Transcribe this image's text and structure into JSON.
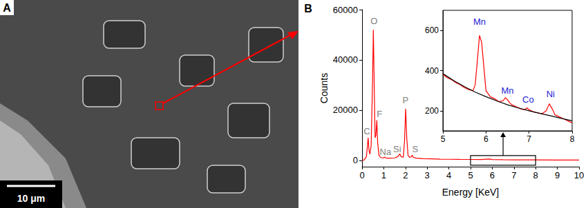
{
  "panel_labels": [
    "A",
    "B"
  ],
  "scale_bar": "10 μm",
  "chart_data": [
    {
      "type": "line",
      "x_label": "Energy [KeV]",
      "y_label": "Counts",
      "xlim": [
        0,
        10
      ],
      "xticks": [
        0,
        1,
        2,
        3,
        4,
        5,
        6,
        7,
        8,
        9,
        10
      ],
      "ylim": [
        -2500,
        60000
      ],
      "yticks": [
        0,
        20000,
        40000,
        60000
      ],
      "grid": false,
      "series": [
        {
          "color": "#ff0000",
          "line_style": "solid",
          "x": [
            0,
            0.1,
            0.2,
            0.24,
            0.28,
            0.32,
            0.36,
            0.42,
            0.48,
            0.52,
            0.56,
            0.6,
            0.64,
            0.68,
            0.72,
            0.78,
            0.85,
            0.95,
            1.0,
            1.04,
            1.08,
            1.15,
            1.3,
            1.5,
            1.65,
            1.74,
            1.8,
            1.9,
            1.96,
            2.01,
            2.06,
            2.12,
            2.2,
            2.27,
            2.31,
            2.36,
            2.5,
            2.8,
            3.2,
            3.6,
            4,
            4.5,
            5,
            5.5,
            5.85,
            6,
            6.5,
            7,
            7.5,
            8,
            9,
            10
          ],
          "values": [
            0,
            200,
            1500,
            5000,
            9000,
            4000,
            2500,
            6000,
            30000,
            52000,
            30000,
            9000,
            10000,
            16000,
            7000,
            2000,
            1200,
            1000,
            1000,
            1400,
            1000,
            900,
            900,
            1000,
            1500,
            2600,
            1500,
            1200,
            8000,
            20500,
            9000,
            2000,
            1200,
            1400,
            2100,
            1200,
            900,
            700,
            600,
            500,
            450,
            400,
            380,
            340,
            560,
            330,
            260,
            220,
            200,
            180,
            150,
            130
          ]
        }
      ],
      "annotations": [
        {
          "text": "C",
          "x": 0.22,
          "y": 11500,
          "color": "#808080"
        },
        {
          "text": "O",
          "x": 0.55,
          "y": 55500,
          "color": "#808080"
        },
        {
          "text": "F",
          "x": 0.8,
          "y": 18500,
          "color": "#808080"
        },
        {
          "text": "Na",
          "x": 1.08,
          "y": 3500,
          "color": "#808080"
        },
        {
          "text": "Si",
          "x": 1.62,
          "y": 4500,
          "color": "#808080"
        },
        {
          "text": "P",
          "x": 2.0,
          "y": 24000,
          "color": "#808080"
        },
        {
          "text": "S",
          "x": 2.45,
          "y": 4500,
          "color": "#808080"
        }
      ]
    },
    {
      "type": "line",
      "xlim": [
        5,
        8
      ],
      "xticks": [
        5,
        6,
        7,
        8
      ],
      "ylim": [
        100,
        700
      ],
      "yticks": [
        200,
        400,
        600
      ],
      "grid": false,
      "series": [
        {
          "color": "#ff0000",
          "line_style": "solid",
          "x": [
            5.0,
            5.1,
            5.2,
            5.3,
            5.4,
            5.5,
            5.6,
            5.7,
            5.75,
            5.8,
            5.85,
            5.9,
            5.95,
            6.0,
            6.1,
            6.2,
            6.3,
            6.4,
            6.45,
            6.5,
            6.55,
            6.6,
            6.7,
            6.8,
            6.9,
            6.95,
            7.0,
            7.1,
            7.2,
            7.3,
            7.4,
            7.47,
            7.55,
            7.6,
            7.7,
            7.8,
            7.9,
            8.0
          ],
          "values": [
            380,
            365,
            355,
            340,
            330,
            315,
            305,
            300,
            330,
            450,
            575,
            540,
            420,
            300,
            270,
            260,
            245,
            250,
            265,
            255,
            240,
            230,
            220,
            210,
            205,
            215,
            205,
            195,
            190,
            185,
            200,
            235,
            205,
            180,
            170,
            160,
            150,
            140
          ]
        },
        {
          "color": "#000000",
          "line_style": "solid",
          "x": [
            5.0,
            5.25,
            5.5,
            5.75,
            6.0,
            6.25,
            6.5,
            6.75,
            7.0,
            7.25,
            7.5,
            7.75,
            8.0
          ],
          "values": [
            385,
            350,
            320,
            293,
            270,
            249,
            230,
            214,
            200,
            187,
            175,
            162,
            150
          ]
        }
      ],
      "annotations": [
        {
          "text": "Mn",
          "x": 5.85,
          "y": 645,
          "color": "#1c1cd6"
        },
        {
          "text": "Mn",
          "x": 6.5,
          "y": 300,
          "color": "#1c1cd6"
        },
        {
          "text": "Co",
          "x": 6.98,
          "y": 255,
          "color": "#1c1cd6"
        },
        {
          "text": "Ni",
          "x": 7.5,
          "y": 285,
          "color": "#1c1cd6"
        }
      ]
    }
  ]
}
